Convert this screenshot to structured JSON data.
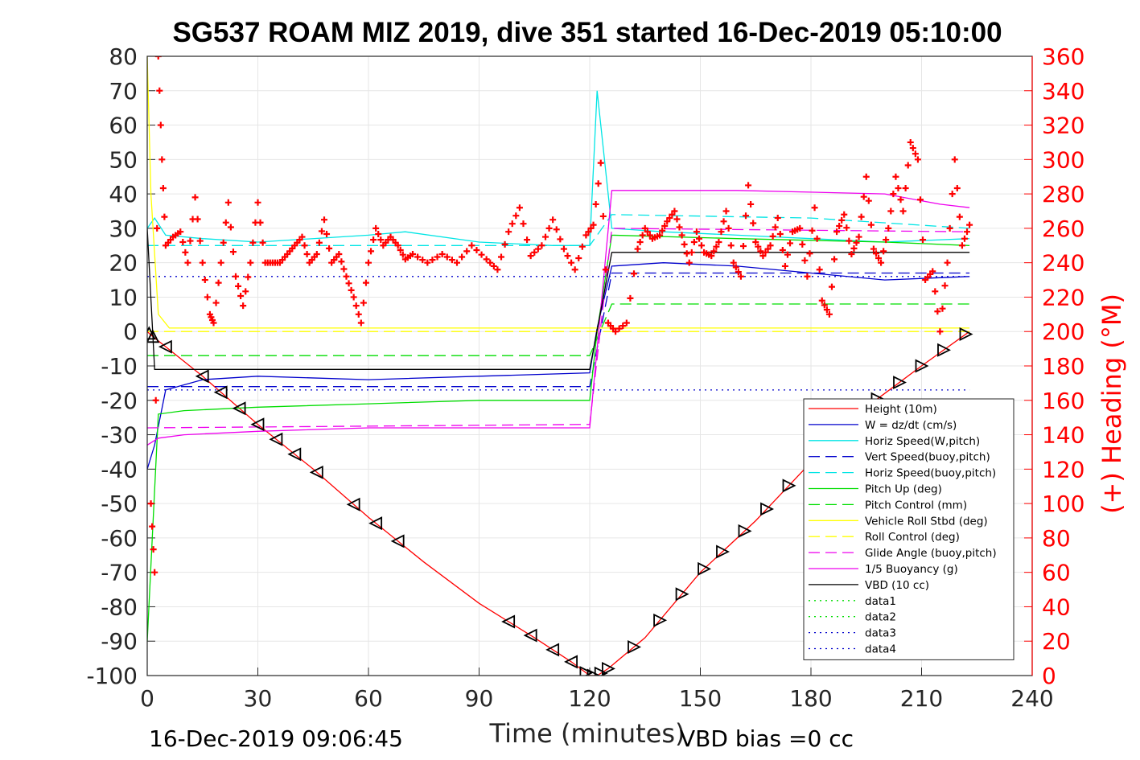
{
  "chart_data": {
    "type": "line",
    "title": "SG537 ROAM MIZ 2019, dive 351 started 16-Dec-2019 05:10:00",
    "xlabel": "Time (minutes)",
    "ylabel": "",
    "y2label": "(+) Heading (°M)",
    "xlim": [
      0,
      240
    ],
    "ylim": [
      -100,
      80
    ],
    "y2lim": [
      0,
      360
    ],
    "x_ticks": [
      "0",
      "30",
      "60",
      "90",
      "120",
      "150",
      "180",
      "210",
      "240"
    ],
    "y_ticks": [
      "-100",
      "-90",
      "-80",
      "-70",
      "-60",
      "-50",
      "-40",
      "-30",
      "-20",
      "-10",
      "0",
      "10",
      "20",
      "30",
      "40",
      "50",
      "60",
      "70",
      "80"
    ],
    "y2_ticks": [
      "0",
      "20",
      "40",
      "60",
      "80",
      "100",
      "120",
      "140",
      "160",
      "180",
      "200",
      "220",
      "240",
      "260",
      "280",
      "300",
      "320",
      "340",
      "360"
    ],
    "grid": true,
    "legend_position": "bottom-right",
    "footer_left": "16-Dec-2019 09:06:45",
    "footer_right": "VBD bias =0 cc",
    "series": [
      {
        "name": "Height (10m)",
        "color": "#ff0000",
        "style": "solid",
        "x": [
          0,
          1,
          15,
          30,
          45,
          60,
          75,
          90,
          105,
          115,
          120,
          122,
          125,
          135,
          150,
          165,
          180,
          195,
          210,
          223
        ],
        "y": [
          0,
          -1,
          -13,
          -27,
          -40,
          -54,
          -67,
          -79,
          -89,
          -96,
          -100,
          -100,
          -98,
          -89,
          -70,
          -55,
          -38,
          -22,
          -10,
          0
        ]
      },
      {
        "name": "W = dz/dt (cm/s)",
        "color": "#0000cc",
        "style": "solid",
        "x": [
          0,
          2,
          5,
          15,
          30,
          60,
          90,
          120,
          122,
          126,
          140,
          160,
          180,
          200,
          223
        ],
        "y": [
          -40,
          -33,
          -17,
          -14,
          -13,
          -14,
          -13,
          -12,
          1,
          19,
          20,
          19,
          17,
          15,
          16
        ]
      },
      {
        "name": "Horiz Speed(W,pitch)",
        "color": "#00e5e5",
        "style": "solid",
        "x": [
          0,
          2,
          5,
          15,
          30,
          60,
          70,
          90,
          110,
          120,
          122,
          126,
          140,
          160,
          180,
          200,
          223
        ],
        "y": [
          30,
          33,
          28,
          27,
          26,
          28,
          29,
          26,
          25,
          25,
          70,
          30,
          29,
          28,
          27,
          26,
          27
        ]
      },
      {
        "name": "Vert Speed(buoy,pitch)",
        "color": "#0000cc",
        "style": "dashed",
        "x": [
          0,
          120,
          126,
          223
        ],
        "y": [
          -16,
          -16,
          17,
          17
        ]
      },
      {
        "name": "Horiz Speed(buoy,pitch)",
        "color": "#00e5e5",
        "style": "dashed",
        "x": [
          0,
          120,
          126,
          180,
          223
        ],
        "y": [
          25,
          25,
          34,
          33,
          30
        ]
      },
      {
        "name": "Pitch Up (deg)",
        "color": "#00dd00",
        "style": "solid",
        "x": [
          0,
          3,
          10,
          30,
          60,
          90,
          120,
          122,
          126,
          160,
          200,
          223
        ],
        "y": [
          -90,
          -24,
          -23,
          -22,
          -21,
          -20,
          -20,
          0,
          28,
          27,
          26,
          25
        ]
      },
      {
        "name": "Pitch Control (mm)",
        "color": "#00dd00",
        "style": "dashed",
        "x": [
          0,
          120,
          126,
          223
        ],
        "y": [
          -7,
          -7,
          8,
          8
        ]
      },
      {
        "name": "Vehicle Roll Stbd (deg)",
        "color": "#ffff00",
        "style": "solid",
        "x": [
          0,
          1,
          3,
          6,
          30,
          60,
          90,
          120,
          126,
          160,
          200,
          223
        ],
        "y": [
          80,
          40,
          5,
          1,
          1,
          1,
          1,
          1,
          1,
          1,
          1,
          1
        ]
      },
      {
        "name": "Roll Control (deg)",
        "color": "#ffff00",
        "style": "dashed",
        "x": [
          0,
          223
        ],
        "y": [
          0,
          0
        ]
      },
      {
        "name": "Glide Angle (buoy,pitch)",
        "color": "#ee00ee",
        "style": "dashed",
        "x": [
          0,
          120,
          126,
          223
        ],
        "y": [
          -28,
          -27,
          30,
          29
        ]
      },
      {
        "name": "1/5 Buoyancy (g)",
        "color": "#ee00ee",
        "style": "solid",
        "x": [
          0,
          3,
          10,
          30,
          60,
          90,
          120,
          126,
          160,
          200,
          215,
          223
        ],
        "y": [
          -33,
          -31,
          -30,
          -29,
          -28,
          -28,
          -28,
          41,
          41,
          40,
          37,
          36
        ]
      },
      {
        "name": "VBD (10 cc)",
        "color": "#000000",
        "style": "solid",
        "x": [
          0,
          2,
          4,
          60,
          120,
          126,
          223
        ],
        "y": [
          30,
          -11,
          -11,
          -11,
          -11,
          23,
          23
        ]
      },
      {
        "name": "data1",
        "color": "#00dd00",
        "style": "dotted",
        "x": [],
        "y": []
      },
      {
        "name": "data2",
        "color": "#00dd00",
        "style": "dotted",
        "x": [],
        "y": []
      },
      {
        "name": "data3",
        "color": "#0000cc",
        "style": "dotted",
        "x": [
          0,
          223
        ],
        "y": [
          -17,
          -17
        ]
      },
      {
        "name": "data4",
        "color": "#0000cc",
        "style": "dotted",
        "x": [
          0,
          120,
          126,
          223
        ],
        "y": [
          16,
          16,
          16,
          16
        ]
      }
    ],
    "heading_series": {
      "name": "(+) Heading",
      "color": "#ff0000",
      "axis": "right",
      "x": [
        1,
        2,
        3,
        4,
        5,
        7,
        9,
        11,
        13,
        15,
        17,
        18,
        20,
        22,
        24,
        26,
        28,
        30,
        32,
        34,
        36,
        38,
        40,
        42,
        44,
        46,
        48,
        50,
        52,
        54,
        56,
        58,
        60,
        62,
        64,
        66,
        68,
        70,
        72,
        76,
        80,
        84,
        88,
        92,
        95,
        98,
        101,
        104,
        107,
        110,
        113,
        116,
        119,
        121,
        123,
        125,
        127,
        130,
        133,
        135,
        137,
        139,
        141,
        143,
        145,
        147,
        149,
        151,
        153,
        155,
        157,
        159,
        161,
        163,
        165,
        167,
        169,
        171,
        173,
        175,
        177,
        179,
        181,
        183,
        185,
        187,
        189,
        191,
        193,
        195,
        197,
        199,
        201,
        203,
        205,
        207,
        209,
        211,
        213,
        215,
        217,
        219,
        221,
        223
      ],
      "y": [
        100,
        60,
        360,
        300,
        250,
        255,
        258,
        240,
        278,
        240,
        210,
        205,
        240,
        275,
        232,
        215,
        240,
        275,
        240,
        240,
        240,
        245,
        250,
        255,
        240,
        245,
        265,
        240,
        245,
        232,
        220,
        205,
        240,
        260,
        250,
        255,
        250,
        242,
        245,
        240,
        245,
        240,
        250,
        242,
        236,
        258,
        272,
        244,
        250,
        265,
        248,
        236,
        256,
        262,
        298,
        205,
        200,
        205,
        248,
        260,
        254,
        256,
        264,
        270,
        256,
        240,
        258,
        246,
        244,
        252,
        270,
        240,
        232,
        285,
        252,
        244,
        250,
        266,
        238,
        258,
        260,
        232,
        272,
        218,
        210,
        258,
        268,
        245,
        255,
        290,
        248,
        240,
        260,
        290,
        270,
        310,
        300,
        230,
        235,
        200,
        240,
        300,
        250,
        262
      ]
    },
    "markers": {
      "up_triangle_at_x": [
        0.5,
        1.5
      ],
      "left_triangle_at_x": [
        5,
        15,
        20,
        25,
        30,
        35,
        40,
        46,
        56,
        62,
        68,
        98,
        104,
        110,
        115
      ],
      "right_triangle_at_x": [
        119,
        121,
        123,
        125,
        132,
        139,
        145,
        151,
        156,
        162,
        168,
        174,
        180,
        186,
        192,
        198,
        204,
        210,
        216,
        222
      ]
    }
  },
  "legend": [
    "Height (10m)",
    "W = dz/dt (cm/s)",
    "Horiz Speed(W,pitch)",
    "Vert Speed(buoy,pitch)",
    "Horiz Speed(buoy,pitch)",
    "Pitch Up (deg)",
    "Pitch Control (mm)",
    "Vehicle Roll Stbd (deg)",
    "Roll Control (deg)",
    "Glide Angle (buoy,pitch)",
    "1/5 Buoyancy (g)",
    "VBD (10 cc)",
    "data1",
    "data2",
    "data3",
    "data4"
  ]
}
